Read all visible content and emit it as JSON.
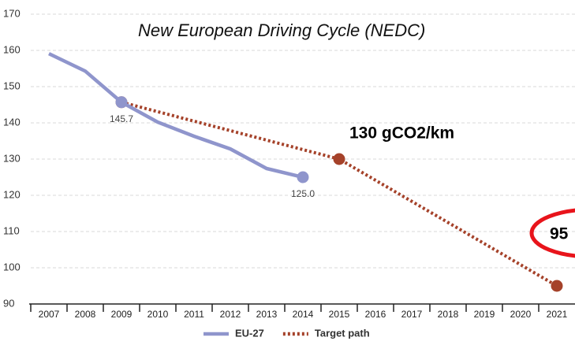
{
  "chart_data": {
    "type": "line",
    "title": "New European Driving Cycle (NEDC)",
    "annotations": [
      "130 gCO2/km",
      "95"
    ],
    "x": [
      2007,
      2008,
      2009,
      2010,
      2011,
      2012,
      2013,
      2014,
      2015,
      2016,
      2017,
      2018,
      2019,
      2020,
      2021
    ],
    "xlim": [
      2006.5,
      2021.5
    ],
    "ylim": [
      90,
      170
    ],
    "yticks": [
      90,
      100,
      110,
      120,
      130,
      140,
      150,
      160,
      170
    ],
    "grid": true,
    "legend": "bottom",
    "series": [
      {
        "name": "EU-27",
        "color": "#8f95cc",
        "style": "solid",
        "x": [
          2007,
          2008,
          2009,
          2010,
          2011,
          2012,
          2013,
          2014
        ],
        "values": [
          159.1,
          154.3,
          145.7,
          140.2,
          136.3,
          132.8,
          127.4,
          125.0
        ],
        "value_labels": [
          null,
          null,
          "145.7",
          null,
          null,
          null,
          null,
          "125.0"
        ]
      },
      {
        "name": "Target path",
        "color": "#a5422a",
        "style": "dotted",
        "x": [
          2009,
          2015,
          2021
        ],
        "values": [
          145.7,
          130,
          95
        ]
      }
    ]
  }
}
